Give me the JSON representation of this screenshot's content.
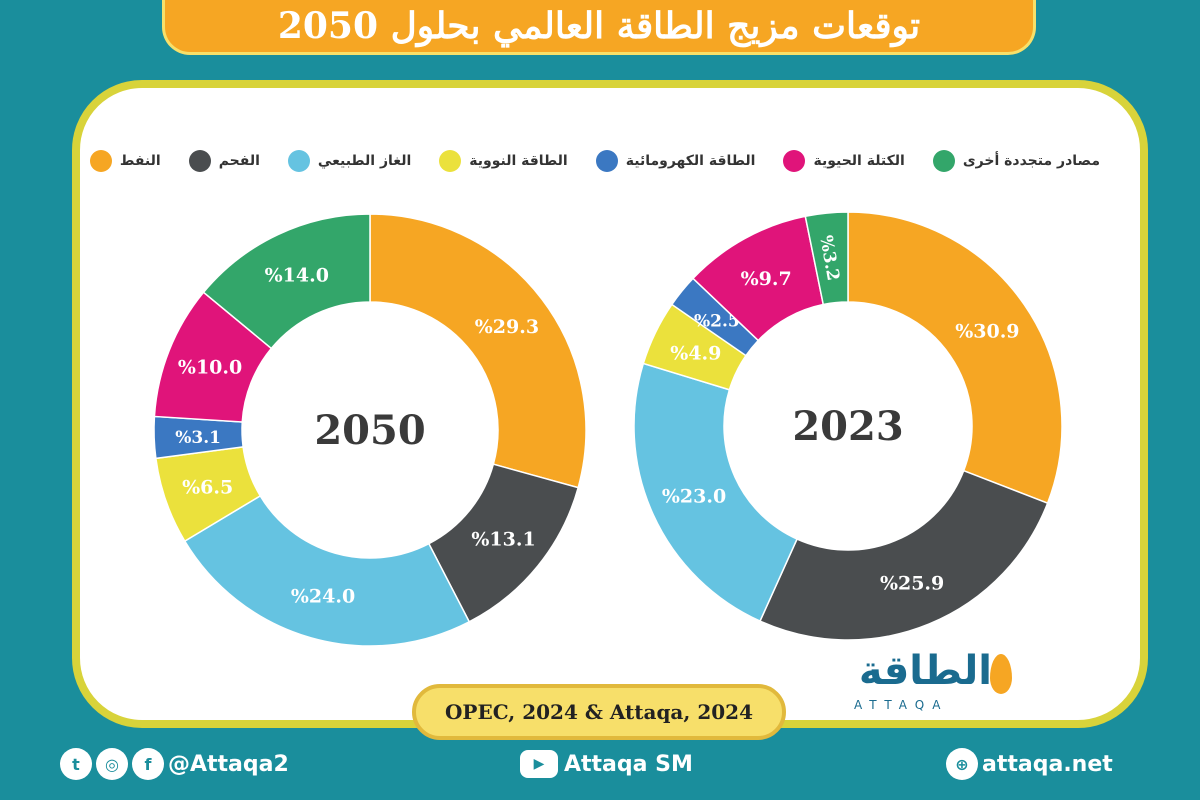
{
  "title": "توقعات مزيج الطاقة العالمي بحلول 2050",
  "legend": [
    {
      "label": "النفط",
      "color": "#f6a623"
    },
    {
      "label": "الفحم",
      "color": "#4a4d4f"
    },
    {
      "label": "الغاز الطبيعي",
      "color": "#65c3e1"
    },
    {
      "label": "الطاقة النووية",
      "color": "#ebe13c"
    },
    {
      "label": "الطاقة الكهرومائية",
      "color": "#3b78c2"
    },
    {
      "label": "الكتلة الحيوية",
      "color": "#e0147a"
    },
    {
      "label": "مصادر متجددة أخرى",
      "color": "#33a66a"
    }
  ],
  "chart_data": [
    {
      "type": "pie",
      "center_label": "2023",
      "categories": [
        "النفط",
        "الفحم",
        "الغاز الطبيعي",
        "الطاقة النووية",
        "الطاقة الكهرومائية",
        "الكتلة الحيوية",
        "مصادر متجددة أخرى"
      ],
      "values": [
        30.9,
        25.9,
        23.0,
        4.9,
        2.5,
        9.7,
        3.2
      ],
      "value_labels": [
        "%30.9",
        "%25.9",
        "%23.0",
        "%4.9",
        "%2.5",
        "%9.7",
        "%3.2"
      ]
    },
    {
      "type": "pie",
      "center_label": "2050",
      "categories": [
        "النفط",
        "الفحم",
        "الغاز الطبيعي",
        "الطاقة النووية",
        "الطاقة الكهرومائية",
        "الكتلة الحيوية",
        "مصادر متجددة أخرى"
      ],
      "values": [
        29.3,
        13.1,
        24.0,
        6.5,
        3.1,
        10.0,
        14.0
      ],
      "value_labels": [
        "%29.3",
        "%13.1",
        "%24.0",
        "%6.5",
        "%3.1",
        "%10.0",
        "%14.0"
      ]
    }
  ],
  "source": "OPEC, 2024 & Attaqa, 2024",
  "logo": {
    "arabic": "الطاقة",
    "latin": "ATTAQA"
  },
  "footer": {
    "social_handle": "@Attaqa2",
    "youtube_handle": "Attaqa SM",
    "website": "attaqa.net"
  },
  "icons": {
    "twitter": "twitter-icon",
    "instagram": "instagram-icon",
    "facebook": "facebook-icon",
    "youtube": "youtube-icon",
    "globe": "globe-icon"
  }
}
